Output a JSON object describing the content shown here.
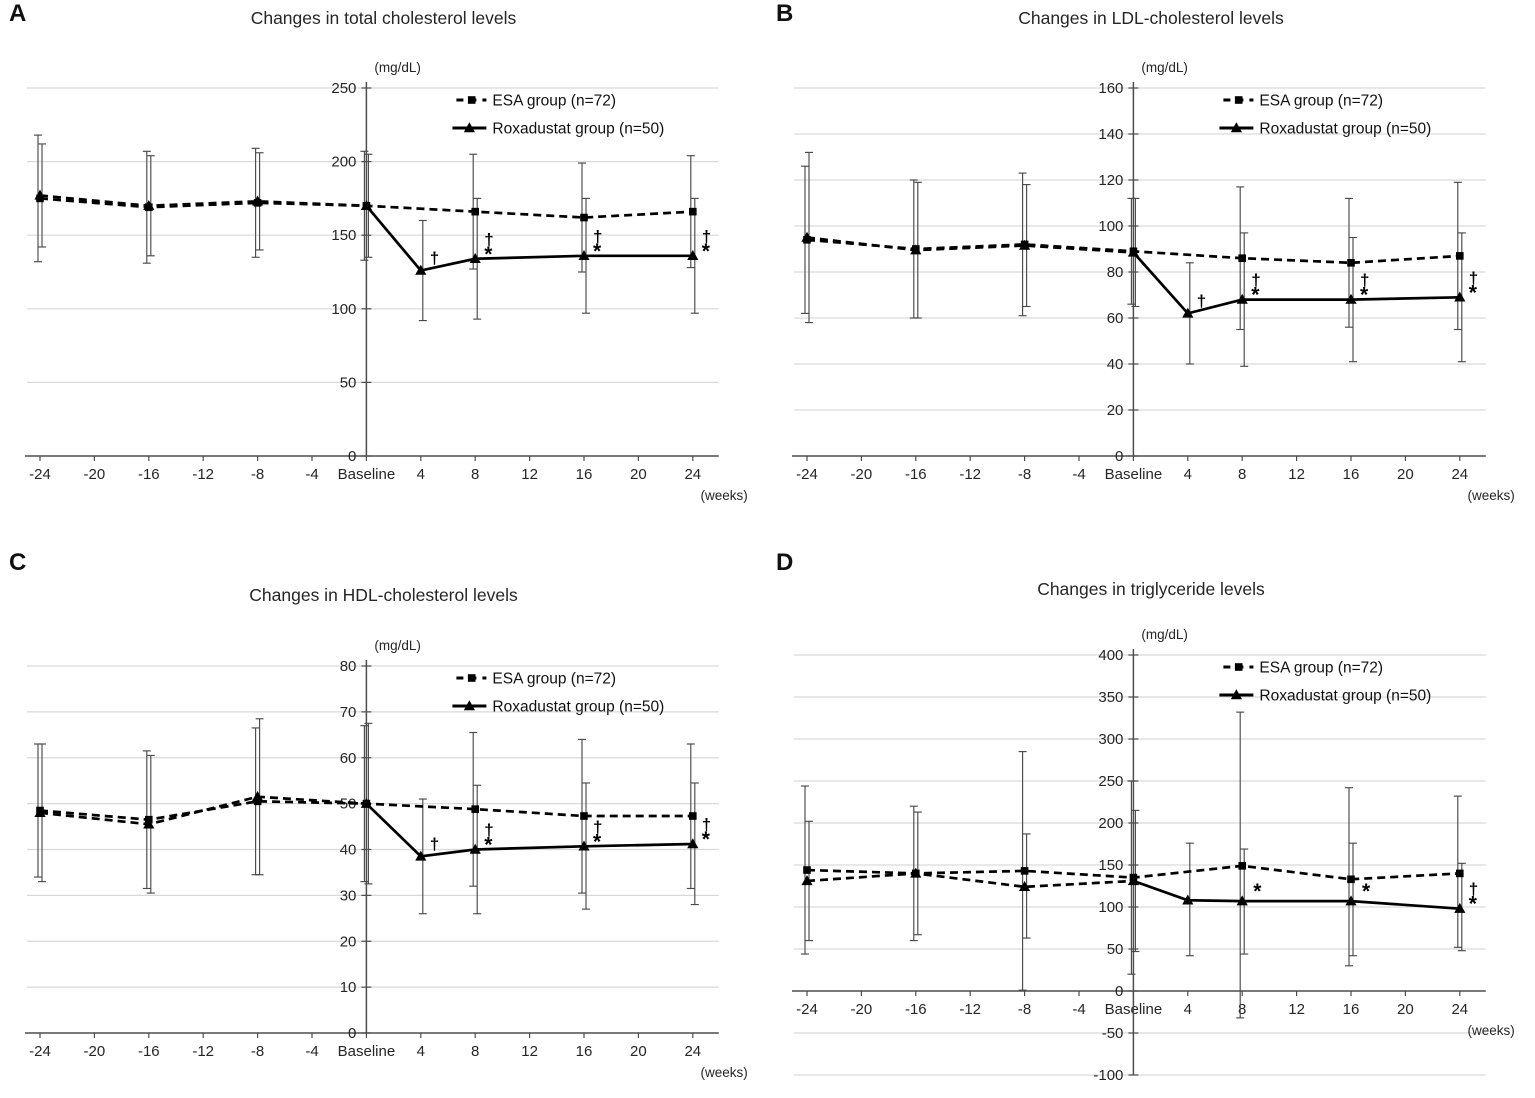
{
  "figure": {
    "description": "Four-panel line chart figure comparing ESA group and Roxadustat group lipid levels over time",
    "x_axis_label": "(weeks)",
    "y_axis_unit": "(mg/dL)"
  },
  "chart_data": [
    {
      "type": "line",
      "letter": "A",
      "title": "Changes in total cholesterol levels",
      "unit": "(mg/dL)",
      "xlabel": "(weeks)",
      "categories": [
        "-24",
        "-20",
        "-16",
        "-12",
        "-8",
        "-4",
        "Baseline",
        "4",
        "8",
        "12",
        "16",
        "20",
        "24"
      ],
      "ylim": [
        0,
        250
      ],
      "ytick_step": 50,
      "grid": true,
      "legend_position": "top-right",
      "series": [
        {
          "name": "ESA group (n=72)",
          "marker": "square",
          "line_style": "dashed",
          "at_categories": [
            "-24",
            "-16",
            "-8",
            "Baseline",
            "8",
            "16",
            "24"
          ],
          "values": [
            175,
            169,
            172,
            170,
            166,
            162,
            166
          ],
          "err_low": [
            132,
            131,
            135,
            133,
            127,
            125,
            128
          ],
          "err_high": [
            218,
            207,
            209,
            207,
            205,
            199,
            204
          ]
        },
        {
          "name": "Roxadustat group (n=50)",
          "marker": "triangle",
          "line_style": "dashed-before-baseline-solid-after",
          "at_categories": [
            "-24",
            "-16",
            "-8",
            "Baseline",
            "4",
            "8",
            "16",
            "24"
          ],
          "values": [
            177,
            170,
            173,
            170,
            126,
            134,
            136,
            136
          ],
          "err_low": [
            142,
            136,
            140,
            135,
            92,
            93,
            97,
            97
          ],
          "err_high": [
            212,
            204,
            206,
            205,
            160,
            175,
            175,
            175
          ]
        }
      ],
      "annotations": [
        {
          "category": "4",
          "symbols": [
            "†"
          ]
        },
        {
          "category": "8",
          "symbols": [
            "†",
            "*"
          ]
        },
        {
          "category": "16",
          "symbols": [
            "†",
            "*"
          ]
        },
        {
          "category": "24",
          "symbols": [
            "†",
            "*"
          ]
        }
      ]
    },
    {
      "type": "line",
      "letter": "B",
      "title": "Changes in LDL-cholesterol levels",
      "unit": "(mg/dL)",
      "xlabel": "(weeks)",
      "categories": [
        "-24",
        "-20",
        "-16",
        "-12",
        "-8",
        "-4",
        "Baseline",
        "4",
        "8",
        "12",
        "16",
        "20",
        "24"
      ],
      "ylim": [
        0,
        160
      ],
      "ytick_step": 20,
      "grid": true,
      "legend_position": "top-right",
      "series": [
        {
          "name": "ESA group (n=72)",
          "marker": "square",
          "line_style": "dashed",
          "at_categories": [
            "-24",
            "-16",
            "-8",
            "Baseline",
            "8",
            "16",
            "24"
          ],
          "values": [
            94,
            90,
            92,
            89,
            86,
            84,
            87
          ],
          "err_low": [
            62,
            60,
            61,
            66,
            55,
            56,
            55
          ],
          "err_high": [
            126,
            120,
            123,
            112,
            117,
            112,
            119
          ]
        },
        {
          "name": "Roxadustat group (n=50)",
          "marker": "triangle",
          "line_style": "dashed-before-baseline-solid-after",
          "at_categories": [
            "-24",
            "-16",
            "-8",
            "Baseline",
            "4",
            "8",
            "16",
            "24"
          ],
          "values": [
            95,
            89.5,
            91.5,
            88.5,
            62,
            68,
            68,
            69
          ],
          "err_low": [
            58,
            60,
            65,
            65,
            40,
            39,
            41,
            41
          ],
          "err_high": [
            132,
            119,
            118,
            112,
            84,
            97,
            95,
            97
          ]
        }
      ],
      "annotations": [
        {
          "category": "4",
          "symbols": [
            "†"
          ]
        },
        {
          "category": "8",
          "symbols": [
            "†",
            "*"
          ]
        },
        {
          "category": "16",
          "symbols": [
            "†",
            "*"
          ]
        },
        {
          "category": "24",
          "symbols": [
            "†",
            "*"
          ]
        }
      ]
    },
    {
      "type": "line",
      "letter": "C",
      "title": "Changes in HDL-cholesterol levels",
      "unit": "(mg/dL)",
      "xlabel": "(weeks)",
      "categories": [
        "-24",
        "-20",
        "-16",
        "-12",
        "-8",
        "-4",
        "Baseline",
        "4",
        "8",
        "12",
        "16",
        "20",
        "24"
      ],
      "ylim": [
        0,
        80
      ],
      "ytick_step": 10,
      "grid": true,
      "legend_position": "top-right",
      "series": [
        {
          "name": "ESA group (n=72)",
          "marker": "square",
          "line_style": "dashed",
          "at_categories": [
            "-24",
            "-16",
            "-8",
            "Baseline",
            "8",
            "16",
            "24"
          ],
          "values": [
            48.5,
            46.5,
            50.5,
            50,
            48.8,
            47.3,
            47.3
          ],
          "err_low": [
            34,
            31.5,
            34.5,
            33,
            32,
            30.5,
            31.5
          ],
          "err_high": [
            63,
            61.5,
            66.5,
            67,
            65.5,
            64,
            63
          ]
        },
        {
          "name": "Roxadustat group (n=50)",
          "marker": "triangle",
          "line_style": "dashed-before-baseline-solid-after",
          "at_categories": [
            "-24",
            "-16",
            "-8",
            "Baseline",
            "4",
            "8",
            "16",
            "24"
          ],
          "values": [
            48,
            45.5,
            51.5,
            50,
            38.5,
            40,
            40.7,
            41.2
          ],
          "err_low": [
            33,
            30.5,
            34.5,
            32.5,
            26,
            26,
            27,
            28
          ],
          "err_high": [
            63,
            60.5,
            68.5,
            67.5,
            51,
            54,
            54.5,
            54.5
          ]
        }
      ],
      "annotations": [
        {
          "category": "4",
          "symbols": [
            "†"
          ]
        },
        {
          "category": "8",
          "symbols": [
            "†",
            "*"
          ]
        },
        {
          "category": "16",
          "symbols": [
            "†",
            "*"
          ]
        },
        {
          "category": "24",
          "symbols": [
            "†",
            "*"
          ]
        }
      ]
    },
    {
      "type": "line",
      "letter": "D",
      "title": "Changes in triglyceride levels",
      "unit": "(mg/dL)",
      "xlabel": "(weeks)",
      "categories": [
        "-24",
        "-20",
        "-16",
        "-12",
        "-8",
        "-4",
        "Baseline",
        "4",
        "8",
        "12",
        "16",
        "20",
        "24"
      ],
      "ylim": [
        -100,
        400
      ],
      "ytick_step": 50,
      "grid": true,
      "legend_position": "top-right",
      "series": [
        {
          "name": "ESA group (n=72)",
          "marker": "square",
          "line_style": "dashed",
          "at_categories": [
            "-24",
            "-16",
            "-8",
            "Baseline",
            "8",
            "16",
            "24"
          ],
          "values": [
            144,
            140,
            143,
            135,
            149,
            133,
            140
          ],
          "err_low": [
            44,
            60,
            1,
            20,
            -32,
            30,
            52
          ],
          "err_high": [
            244,
            220,
            285,
            250,
            332,
            242,
            232
          ]
        },
        {
          "name": "Roxadustat group (n=50)",
          "marker": "triangle",
          "line_style": "dashed-before-baseline-solid-after",
          "at_categories": [
            "-24",
            "-16",
            "-8",
            "Baseline",
            "4",
            "8",
            "16",
            "24"
          ],
          "values": [
            131,
            140,
            124,
            131,
            108,
            107,
            107,
            98
          ],
          "err_low": [
            60,
            67,
            63,
            47,
            42,
            44,
            42,
            48
          ],
          "err_high": [
            202,
            213,
            187,
            215,
            176,
            169,
            176,
            152
          ]
        }
      ],
      "annotations": [
        {
          "category": "8",
          "symbols": [
            "*"
          ]
        },
        {
          "category": "16",
          "symbols": [
            "*"
          ]
        },
        {
          "category": "24",
          "symbols": [
            "†",
            "*"
          ]
        }
      ]
    }
  ]
}
